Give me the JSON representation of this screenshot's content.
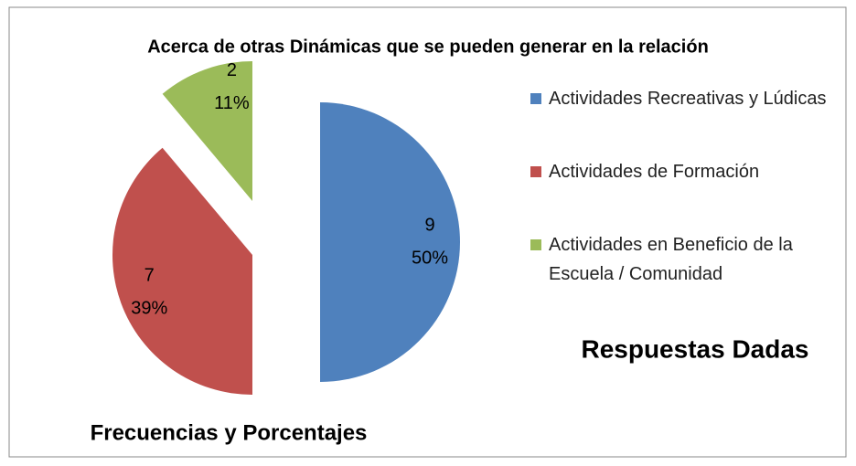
{
  "chart_data": {
    "type": "pie",
    "title": "Acerca de otras Dinámicas que se pueden generar en la relación",
    "categories": [
      "Actividades Recreativas y Lúdicas",
      "Actividades de Formación",
      "Actividades en Beneficio de la Escuela / Comunidad"
    ],
    "values": [
      9,
      7,
      2
    ],
    "percent_labels": [
      "50%",
      "39%",
      "11%"
    ],
    "colors": [
      "#4f81bd",
      "#c0504d",
      "#9bbb59"
    ],
    "legend": "right",
    "legend_title": "Respuestas  Dadas",
    "xlabel": "Frecuencias  y  Porcentajes"
  }
}
